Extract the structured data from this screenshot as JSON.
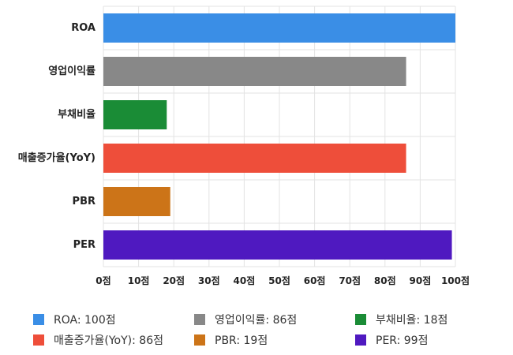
{
  "chart_data": {
    "type": "bar",
    "orientation": "horizontal",
    "categories": [
      "ROA",
      "영업이익률",
      "부채비율",
      "매출증가율(YoY)",
      "PBR",
      "PER"
    ],
    "values": [
      100,
      86,
      18,
      86,
      19,
      99
    ],
    "colors": [
      "#3a8ee6",
      "#888888",
      "#1a8c36",
      "#ee4e3a",
      "#cc7418",
      "#4f19c0"
    ],
    "unit": "점",
    "xlim": [
      0,
      100
    ],
    "xticks": [
      0,
      10,
      20,
      30,
      40,
      50,
      60,
      70,
      80,
      90,
      100
    ],
    "tick_labels": [
      "0점",
      "10점",
      "20점",
      "30점",
      "40점",
      "50점",
      "60점",
      "70점",
      "80점",
      "90점",
      "100점"
    ],
    "grid": true,
    "legend_position": "bottom",
    "legend": [
      "ROA: 100점",
      "영업이익률: 86점",
      "부채비율: 18점",
      "매출증가율(YoY): 86점",
      "PBR: 19점",
      "PER: 99점"
    ]
  }
}
